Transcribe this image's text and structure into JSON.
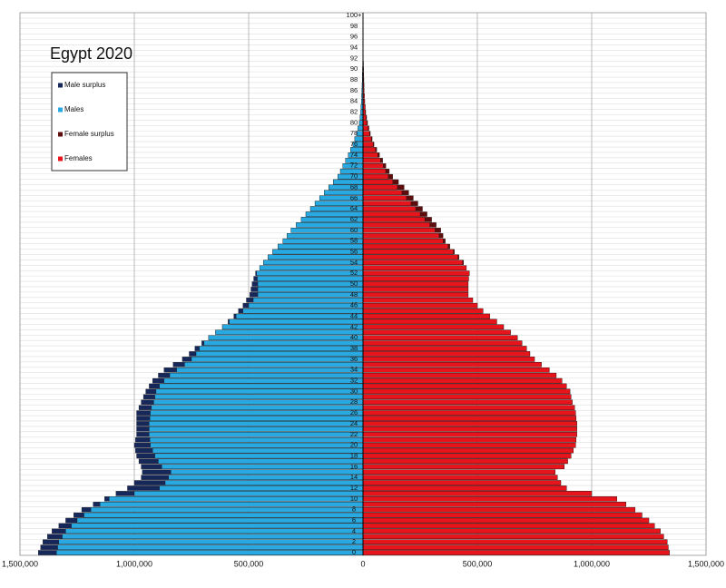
{
  "chart_data": {
    "type": "pyramid",
    "title": "Egypt 2020",
    "categories": [
      "0",
      null,
      "2",
      null,
      "4",
      null,
      "6",
      null,
      "8",
      null,
      "10",
      null,
      "12",
      null,
      "14",
      null,
      "16",
      null,
      "18",
      null,
      "20",
      null,
      "22",
      null,
      "24",
      null,
      "26",
      null,
      "28",
      null,
      "30",
      null,
      "32",
      null,
      "34",
      null,
      "36",
      null,
      "38",
      null,
      "40",
      null,
      "42",
      null,
      "44",
      null,
      "46",
      null,
      "48",
      null,
      "50",
      null,
      "52",
      null,
      "54",
      null,
      "56",
      null,
      "58",
      null,
      "60",
      null,
      "62",
      null,
      "64",
      null,
      "66",
      null,
      "68",
      null,
      "70",
      null,
      "72",
      null,
      "74",
      null,
      "76",
      null,
      "78",
      null,
      "80",
      null,
      "82",
      null,
      "84",
      null,
      "86",
      null,
      "88",
      null,
      "90",
      null,
      "92",
      null,
      "94",
      null,
      "96",
      null,
      "98",
      null,
      "100+"
    ],
    "series": [
      {
        "name": "Males",
        "color": "#29a9e1",
        "values": [
          1420000,
          1410000,
          1400000,
          1380000,
          1360000,
          1330000,
          1300000,
          1265000,
          1230000,
          1180000,
          1130000,
          1080000,
          1030000,
          1000000,
          970000,
          965000,
          970000,
          980000,
          990000,
          995000,
          1000000,
          995000,
          990000,
          990000,
          990000,
          990000,
          990000,
          980000,
          970000,
          960000,
          950000,
          935000,
          920000,
          895000,
          870000,
          830000,
          790000,
          760000,
          735000,
          705000,
          675000,
          645000,
          615000,
          590000,
          565000,
          545000,
          525000,
          510000,
          495000,
          490000,
          485000,
          478000,
          470000,
          452000,
          435000,
          415000,
          395000,
          372000,
          350000,
          332000,
          315000,
          292000,
          270000,
          250000,
          230000,
          210000,
          190000,
          170000,
          150000,
          130000,
          110000,
          99000,
          88000,
          76000,
          64000,
          54000,
          44000,
          36000,
          28000,
          22000,
          16000,
          13000,
          10000,
          8500,
          7000,
          6000,
          5000,
          4000,
          3000,
          2500,
          2000,
          1500,
          1000,
          800,
          600,
          450,
          300,
          200,
          150,
          120,
          100
        ]
      },
      {
        "name": "Females",
        "color": "#e8141b",
        "values": [
          1340000,
          1335000,
          1330000,
          1315000,
          1300000,
          1275000,
          1250000,
          1220000,
          1190000,
          1150000,
          1110000,
          1000000,
          890000,
          865000,
          850000,
          840000,
          880000,
          895000,
          910000,
          920000,
          930000,
          932000,
          935000,
          935000,
          935000,
          932000,
          930000,
          925000,
          915000,
          910000,
          905000,
          890000,
          870000,
          845000,
          815000,
          780000,
          750000,
          730000,
          715000,
          695000,
          675000,
          645000,
          615000,
          585000,
          555000,
          525000,
          500000,
          480000,
          460000,
          460000,
          460000,
          462000,
          465000,
          452000,
          440000,
          420000,
          400000,
          380000,
          360000,
          350000,
          340000,
          320000,
          300000,
          280000,
          260000,
          240000,
          220000,
          200000,
          180000,
          155000,
          130000,
          115000,
          100000,
          86000,
          72000,
          60000,
          48000,
          40000,
          32000,
          26000,
          20000,
          16000,
          12000,
          10000,
          8000,
          6500,
          5000,
          4500,
          4000,
          3500,
          3000,
          2200,
          1500,
          1100,
          800,
          600,
          400,
          300,
          200,
          150,
          120
        ]
      }
    ],
    "surplus": [
      {
        "name": "Male surplus",
        "color": "#16275a"
      },
      {
        "name": "Female surplus",
        "color": "#5e0c0c"
      }
    ],
    "xlim": [
      -1500000,
      1500000
    ],
    "xticks": [
      {
        "value": -1500000,
        "label": "1,500,000"
      },
      {
        "value": -1000000,
        "label": "1,000,000"
      },
      {
        "value": -500000,
        "label": "500,000"
      },
      0,
      {
        "value": 500000,
        "label": "500,000"
      },
      {
        "value": 1000000,
        "label": "1,000,000"
      },
      {
        "value": 1500000,
        "label": "1,500,000"
      }
    ],
    "grid": true
  }
}
